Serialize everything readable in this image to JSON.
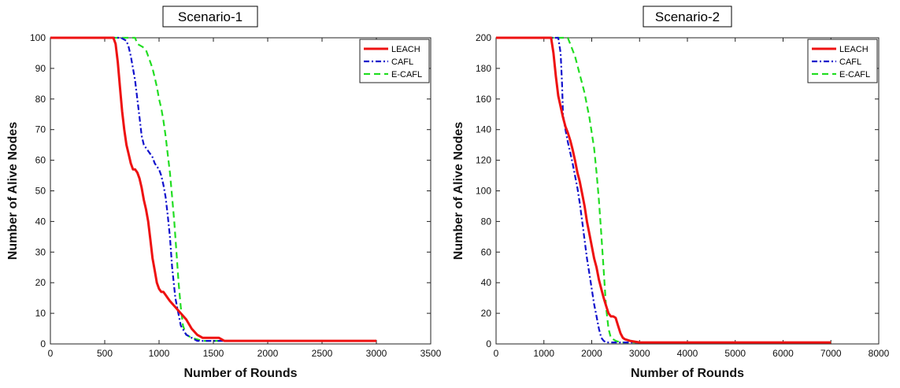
{
  "chart_data": [
    {
      "type": "line",
      "title": "Scenario-1",
      "xlabel": "Number of Rounds",
      "ylabel": "Number of Alive Nodes",
      "xlim": [
        0,
        3500
      ],
      "ylim": [
        0,
        100
      ],
      "xticks": [
        0,
        500,
        1000,
        1500,
        2000,
        2500,
        3000,
        3500
      ],
      "yticks": [
        0,
        10,
        20,
        30,
        40,
        50,
        60,
        70,
        80,
        90,
        100
      ],
      "grid": false,
      "legend": "top-right",
      "series": [
        {
          "name": "LEACH",
          "color": "#ee1111",
          "style": "solid",
          "x": [
            0,
            580,
            600,
            620,
            640,
            660,
            680,
            700,
            720,
            740,
            760,
            780,
            800,
            820,
            840,
            860,
            880,
            900,
            920,
            940,
            960,
            980,
            1000,
            1020,
            1040,
            1060,
            1080,
            1100,
            1150,
            1200,
            1250,
            1300,
            1350,
            1400,
            1450,
            1500,
            1550,
            1600,
            2000,
            2500,
            3000
          ],
          "y": [
            100,
            100,
            98,
            92,
            84,
            76,
            70,
            65,
            62,
            59,
            57,
            57,
            56,
            54,
            51,
            47,
            44,
            40,
            34,
            28,
            24,
            20,
            18,
            17,
            17,
            16,
            15,
            14,
            12,
            10,
            8,
            5,
            3,
            2,
            2,
            2,
            2,
            1,
            1,
            1,
            1
          ]
        },
        {
          "name": "CAFL",
          "color": "#1111cc",
          "style": "dashdot",
          "x": [
            0,
            650,
            700,
            720,
            740,
            760,
            780,
            800,
            820,
            840,
            860,
            880,
            900,
            920,
            940,
            960,
            980,
            1000,
            1020,
            1040,
            1060,
            1080,
            1100,
            1120,
            1150,
            1200,
            1250,
            1300,
            1350,
            1400,
            1500,
            2000,
            2500,
            3000
          ],
          "y": [
            100,
            100,
            99,
            97,
            94,
            90,
            86,
            80,
            74,
            68,
            65,
            64,
            63,
            62,
            61,
            59,
            58,
            57,
            55,
            52,
            48,
            42,
            35,
            25,
            15,
            6,
            3,
            2,
            1,
            1,
            1,
            1,
            1,
            1
          ]
        },
        {
          "name": "E-CAFL",
          "color": "#22dd22",
          "style": "dashed",
          "x": [
            0,
            780,
            800,
            850,
            880,
            900,
            920,
            940,
            960,
            980,
            1000,
            1020,
            1040,
            1060,
            1080,
            1100,
            1120,
            1140,
            1160,
            1180,
            1200,
            1220,
            1250,
            1300,
            1400,
            1500,
            2000,
            2500,
            3000
          ],
          "y": [
            100,
            100,
            98,
            97,
            96,
            94,
            92,
            90,
            87,
            84,
            80,
            77,
            73,
            68,
            62,
            56,
            48,
            40,
            30,
            20,
            12,
            6,
            3,
            2,
            1,
            1,
            1,
            1,
            1
          ]
        }
      ]
    },
    {
      "type": "line",
      "title": "Scenario-2",
      "xlabel": "Number of Rounds",
      "ylabel": "Number of Alive Nodes",
      "xlim": [
        0,
        8000
      ],
      "ylim": [
        0,
        200
      ],
      "xticks": [
        0,
        1000,
        2000,
        3000,
        4000,
        5000,
        6000,
        7000,
        8000
      ],
      "yticks": [
        0,
        20,
        40,
        60,
        80,
        100,
        120,
        140,
        160,
        180,
        200
      ],
      "grid": false,
      "legend": "top-right",
      "series": [
        {
          "name": "LEACH",
          "color": "#ee1111",
          "style": "solid",
          "x": [
            0,
            1150,
            1200,
            1250,
            1300,
            1350,
            1400,
            1450,
            1500,
            1550,
            1600,
            1650,
            1700,
            1750,
            1800,
            1850,
            1900,
            1950,
            2000,
            2050,
            2100,
            2150,
            2200,
            2250,
            2300,
            2350,
            2400,
            2450,
            2500,
            2550,
            2600,
            2650,
            2700,
            2800,
            3000,
            4000,
            5000,
            6000,
            7000
          ],
          "y": [
            200,
            200,
            190,
            175,
            162,
            155,
            148,
            142,
            138,
            133,
            127,
            120,
            112,
            106,
            98,
            90,
            80,
            72,
            64,
            56,
            50,
            42,
            36,
            30,
            25,
            20,
            18,
            18,
            17,
            12,
            7,
            4,
            3,
            2,
            1,
            1,
            1,
            1,
            1
          ]
        },
        {
          "name": "CAFL",
          "color": "#1111cc",
          "style": "dashdot",
          "x": [
            0,
            1300,
            1350,
            1380,
            1400,
            1450,
            1500,
            1550,
            1600,
            1650,
            1700,
            1750,
            1800,
            1850,
            1900,
            1950,
            2000,
            2050,
            2100,
            2150,
            2200,
            2250,
            2300,
            2400,
            3000,
            4000,
            5000,
            6000,
            7000
          ],
          "y": [
            200,
            200,
            190,
            170,
            150,
            140,
            132,
            125,
            118,
            110,
            102,
            92,
            80,
            68,
            56,
            46,
            36,
            26,
            18,
            10,
            4,
            2,
            1,
            1,
            1,
            1,
            1,
            1,
            1
          ]
        },
        {
          "name": "E-CAFL",
          "color": "#22dd22",
          "style": "dashed",
          "x": [
            0,
            1500,
            1550,
            1600,
            1650,
            1700,
            1750,
            1800,
            1850,
            1900,
            1950,
            2000,
            2050,
            2100,
            2150,
            2200,
            2250,
            2300,
            2350,
            2400,
            2500,
            2600,
            3000,
            4000,
            5000,
            6000,
            7000
          ],
          "y": [
            200,
            200,
            196,
            192,
            188,
            182,
            176,
            170,
            164,
            156,
            148,
            138,
            128,
            112,
            94,
            72,
            48,
            24,
            10,
            4,
            2,
            1,
            1,
            1,
            1,
            1,
            1
          ]
        }
      ]
    }
  ]
}
